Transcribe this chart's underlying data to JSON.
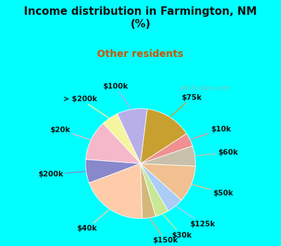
{
  "title": "Income distribution in Farmington, NM\n(%)",
  "subtitle": "Other residents",
  "title_color": "#111111",
  "subtitle_color": "#cc5500",
  "bg_color": "#00ffff",
  "chart_bg_tl": "#e0f5f0",
  "chart_bg_br": "#d0eedd",
  "watermark": "@City-Data.com",
  "labels": [
    "$100k",
    "> $200k",
    "$20k",
    "$200k",
    "$40k",
    "$150k",
    "$30k",
    "$125k",
    "$50k",
    "$60k",
    "$10k",
    "$75k"
  ],
  "values": [
    9,
    5,
    12,
    7,
    20,
    4,
    4,
    5,
    11,
    6,
    4,
    14
  ],
  "colors": [
    "#b8aee8",
    "#f5f5a0",
    "#f5b8c8",
    "#8888cc",
    "#ffccaa",
    "#d4b87a",
    "#c8e896",
    "#aaccf5",
    "#f0c090",
    "#c8c0aa",
    "#f09090",
    "#c8a030"
  ],
  "label_fontsize": 7.5,
  "startangle": 83,
  "pct_distance": 0.75
}
